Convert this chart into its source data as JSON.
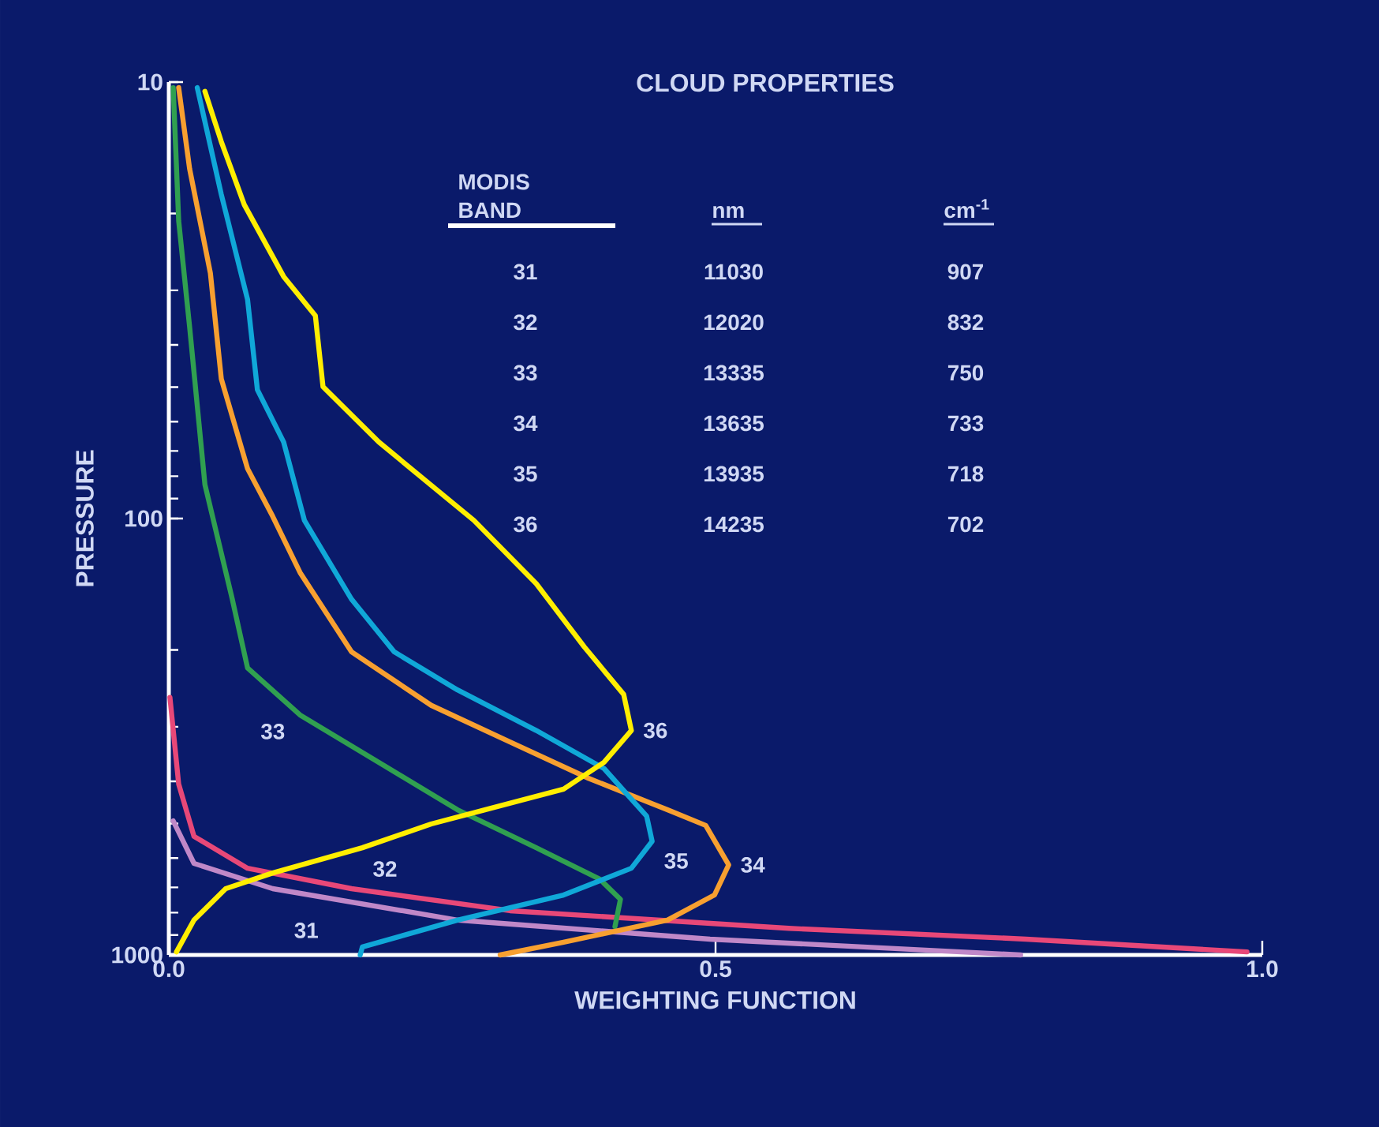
{
  "chart_data": {
    "type": "line",
    "title": "CLOUD PROPERTIES",
    "xlabel": "WEIGHTING FUNCTION",
    "ylabel": "PRESSURE",
    "xlim": [
      0,
      1
    ],
    "xticks": [
      {
        "value": 0,
        "label": "0.0"
      },
      {
        "value": 0.5,
        "label": "0.5"
      },
      {
        "value": 1,
        "label": "1.0"
      }
    ],
    "ylim": [
      1000,
      10
    ],
    "yticks": [
      10,
      100,
      1000
    ],
    "log": "y",
    "grid": false,
    "legend": false,
    "marker": "none",
    "line_style": "solid",
    "series": [
      {
        "name": "31",
        "color": "#c088c8",
        "x": [
          0.004,
          0.023,
          0.095,
          0.264,
          0.495,
          0.779
        ],
        "values": [
          493,
          617,
          705,
          832,
          920,
          1000
        ]
      },
      {
        "name": "32",
        "color": "#e84878",
        "x": [
          0.001,
          0.009,
          0.023,
          0.072,
          0.167,
          0.312,
          0.567,
          0.784,
          0.986
        ],
        "values": [
          257,
          406,
          535,
          633,
          705,
          792,
          869,
          920,
          984
        ]
      },
      {
        "name": "33",
        "color": "#30a050",
        "x": [
          0.004,
          0.009,
          0.019,
          0.033,
          0.058,
          0.072,
          0.12,
          0.192,
          0.264,
          0.336,
          0.394,
          0.413,
          0.408
        ],
        "values": [
          10.3,
          20.8,
          36.4,
          83.6,
          153,
          220,
          282,
          362,
          465,
          568,
          670,
          746,
          861
        ]
      },
      {
        "name": "34",
        "color": "#f8a030",
        "x": [
          0.009,
          0.019,
          0.038,
          0.048,
          0.072,
          0.095,
          0.12,
          0.167,
          0.24,
          0.312,
          0.384,
          0.456,
          0.491,
          0.512,
          0.499,
          0.456,
          0.361,
          0.303
        ],
        "values": [
          10.3,
          15.8,
          27.4,
          47.9,
          76.9,
          98.9,
          133,
          202,
          268,
          325,
          394,
          465,
          505,
          622,
          729,
          832,
          935,
          1000
        ]
      },
      {
        "name": "35",
        "color": "#10a8d8",
        "x": [
          0.026,
          0.048,
          0.072,
          0.081,
          0.105,
          0.124,
          0.167,
          0.206,
          0.264,
          0.336,
          0.398,
          0.437,
          0.442,
          0.423,
          0.361,
          0.264,
          0.177,
          0.175
        ],
        "values": [
          10.3,
          18.1,
          31.5,
          50.7,
          66.8,
          101,
          153,
          202,
          247,
          306,
          374,
          481,
          549,
          633,
          729,
          832,
          959,
          1000
        ]
      },
      {
        "name": "36",
        "color": "#ffee00",
        "x": [
          0.033,
          0.048,
          0.069,
          0.105,
          0.134,
          0.141,
          0.192,
          0.279,
          0.336,
          0.38,
          0.416,
          0.423,
          0.398,
          0.361,
          0.289,
          0.24,
          0.177,
          0.095,
          0.052,
          0.023,
          0.007
        ],
        "values": [
          10.5,
          13.7,
          19.1,
          27.9,
          34.3,
          49.9,
          66.8,
          101,
          141,
          197,
          253,
          306,
          362,
          417,
          465,
          501,
          568,
          649,
          705,
          832,
          984
        ]
      }
    ],
    "annotations": [
      "MODIS BAND",
      "nm",
      "cm$^{-1}$",
      "31",
      "11030",
      "907",
      "32",
      "12020",
      "832",
      "33",
      "13335",
      "750",
      "34",
      "13635",
      "733",
      "35",
      "13935",
      "718",
      "36",
      "14235",
      "702"
    ]
  }
}
